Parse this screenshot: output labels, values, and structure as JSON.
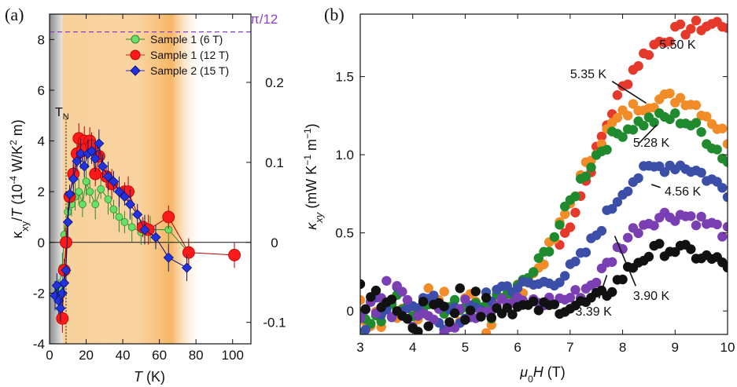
{
  "chart_data": [
    {
      "panel": "(a)",
      "type": "scatter",
      "xlabel": "T (K)",
      "ylabel": "κxy/T (10⁻⁴ W/K² m)",
      "xlim": [
        0,
        110
      ],
      "ylim": [
        -4,
        9
      ],
      "xticks": [
        0,
        20,
        40,
        60,
        80,
        100
      ],
      "yticks": [
        -4,
        -2,
        0,
        2,
        4,
        6,
        8
      ],
      "right_axis": {
        "ticks": [
          0.2,
          0.1,
          0,
          -0.1
        ],
        "labels": [
          "0.2",
          "0.1",
          "0",
          "-0.1"
        ],
        "scale_per_left_unit": 0.0317
      },
      "reference_line": {
        "y": 8.3,
        "label": "π/12",
        "color": "#8b3fc8"
      },
      "tn_line": {
        "x": 9,
        "label": "TN"
      },
      "shading": {
        "gray_end": 7,
        "orange_band": [
          5,
          84
        ],
        "color": "#f4b04c"
      },
      "series": [
        {
          "name": "Sample 1 (6 T)",
          "marker": "circle",
          "size": 4.5,
          "color": "#66e066",
          "edge": "#2b8a2b",
          "points": [
            [
              5,
              -1.8
            ],
            [
              7,
              -1.0
            ],
            [
              8,
              0.3
            ],
            [
              10,
              1.2
            ],
            [
              12,
              1.5
            ],
            [
              14,
              1.8
            ],
            [
              16,
              2.0
            ],
            [
              18,
              1.5
            ],
            [
              20,
              2.4
            ],
            [
              22,
              2.0
            ],
            [
              25,
              1.5
            ],
            [
              28,
              2.1
            ],
            [
              32,
              1.7
            ],
            [
              35,
              1.3
            ],
            [
              38,
              1.0
            ],
            [
              41,
              0.8
            ],
            [
              45,
              0.6
            ],
            [
              50,
              0.4
            ],
            [
              55,
              0.5
            ],
            [
              65,
              0.5
            ],
            [
              76,
              -0.4
            ]
          ]
        },
        {
          "name": "Sample 1 (12 T)",
          "marker": "circle",
          "size": 7.5,
          "color": "#ff1a1a",
          "edge": "#b00000",
          "points": [
            [
              7,
              -3.0
            ],
            [
              8,
              -1.1
            ],
            [
              9,
              0.0
            ],
            [
              11,
              1.8
            ],
            [
              13,
              2.7
            ],
            [
              15,
              3.5
            ],
            [
              16,
              4.1
            ],
            [
              18,
              3.6
            ],
            [
              19,
              4.0
            ],
            [
              20,
              3.7
            ],
            [
              22,
              4.0
            ],
            [
              23,
              3.8
            ],
            [
              25,
              2.7
            ],
            [
              27,
              3.4
            ],
            [
              31,
              2.6
            ],
            [
              34,
              2.3
            ],
            [
              41,
              2.0
            ],
            [
              43,
              2.0
            ],
            [
              51,
              0.6
            ],
            [
              54,
              0.5
            ],
            [
              65,
              1.0
            ],
            [
              76,
              -0.4
            ],
            [
              101,
              -0.5
            ]
          ]
        },
        {
          "name": "Sample 2 (15 T)",
          "marker": "diamond",
          "size": 6,
          "color": "#2233dd",
          "edge": "#0a1277",
          "points": [
            [
              3,
              -2.1
            ],
            [
              4,
              -1.7
            ],
            [
              5,
              -2.3
            ],
            [
              6,
              -2.6
            ],
            [
              7,
              -2.0
            ],
            [
              8,
              -1.6
            ],
            [
              9,
              -1.1
            ],
            [
              10,
              0.8
            ],
            [
              11,
              1.9
            ],
            [
              13,
              2.5
            ],
            [
              15,
              3.2
            ],
            [
              17,
              3.5
            ],
            [
              19,
              3.0
            ],
            [
              21,
              3.5
            ],
            [
              23,
              3.6
            ],
            [
              25,
              3.3
            ],
            [
              27,
              3.9
            ],
            [
              29,
              3.0
            ],
            [
              32,
              2.6
            ],
            [
              35,
              2.4
            ],
            [
              38,
              2.0
            ],
            [
              41,
              1.8
            ],
            [
              44,
              1.5
            ],
            [
              48,
              1.1
            ],
            [
              52,
              0.5
            ],
            [
              58,
              0.2
            ],
            [
              65,
              -0.6
            ],
            [
              75,
              -1.0
            ]
          ]
        }
      ]
    },
    {
      "panel": "(b)",
      "type": "scatter",
      "xlabel": "μ0H (T)",
      "ylabel": "κxy (mW K⁻¹ m⁻¹)",
      "xlim": [
        3,
        10
      ],
      "ylim": [
        -0.15,
        1.9
      ],
      "xticks": [
        3,
        4,
        5,
        6,
        7,
        8,
        9,
        10
      ],
      "yticks": [
        0,
        0.5,
        1.0,
        1.5
      ],
      "yticklabels": [
        "0",
        "0.5",
        "1.0",
        "1.5"
      ],
      "series": [
        {
          "name": "5.50 K",
          "color": "#e5392b",
          "center": 7.4,
          "amp": 1.85,
          "width": 0.9,
          "base": 0.0,
          "peak_x": 11.0,
          "x_start": 6.8
        },
        {
          "name": "5.35 K",
          "color": "#f28c28",
          "center": 7.0,
          "amp": 1.38,
          "width": 0.8,
          "base": 0.0,
          "peak_x": 9.0
        },
        {
          "name": "5.28 K",
          "color": "#1f8a2e",
          "center": 6.9,
          "amp": 1.25,
          "width": 0.8,
          "base": 0.0,
          "peak_x": 8.9
        },
        {
          "name": "4.56 K",
          "color": "#3b4fa8",
          "center": 7.6,
          "amp": 0.8,
          "width": 0.6,
          "base": 0.15,
          "peak_x": 8.9
        },
        {
          "name": "3.90 K",
          "color": "#7a3fb3",
          "center": 7.8,
          "amp": 0.58,
          "width": 0.55,
          "base": 0.05,
          "peak_x": 8.9
        },
        {
          "name": "3.39 K",
          "color": "#111111",
          "center": 8.0,
          "amp": 0.4,
          "width": 0.5,
          "base": 0.02,
          "peak_x": 8.6
        }
      ],
      "annotations": [
        {
          "text": "5.50 K"
        },
        {
          "text": "5.35 K"
        },
        {
          "text": "5.28 K"
        },
        {
          "text": "4.56 K"
        },
        {
          "text": "3.90 K"
        },
        {
          "text": "3.39 K"
        }
      ]
    }
  ]
}
